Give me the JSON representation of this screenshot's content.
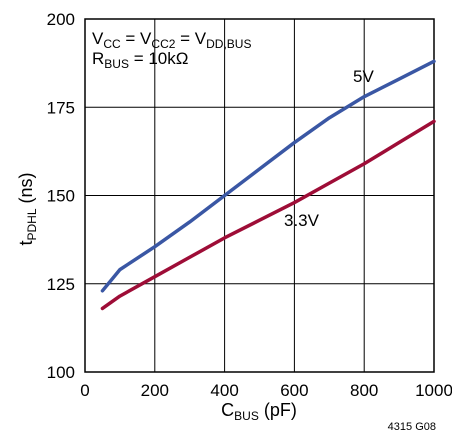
{
  "chart_data": {
    "type": "line",
    "title": "",
    "xlabel": {
      "main": "C",
      "sub": "BUS",
      "suffix": " (pF)"
    },
    "ylabel": {
      "main": "t",
      "sub": "PDHL",
      "suffix": " (ns)"
    },
    "xlim": [
      0,
      1000
    ],
    "ylim": [
      100,
      200
    ],
    "xticks": [
      "0",
      "200",
      "400",
      "600",
      "800",
      "1000"
    ],
    "yticks": [
      "100",
      "125",
      "150",
      "175",
      "200"
    ],
    "grid": true,
    "series": [
      {
        "name": "5V",
        "color": "#3a57a4",
        "x": [
          50,
          100,
          200,
          300,
          400,
          500,
          600,
          700,
          800,
          900,
          1000
        ],
        "y": [
          123,
          129,
          135.5,
          142.5,
          150,
          157.5,
          165,
          172,
          178,
          183,
          188
        ]
      },
      {
        "name": "3.3V",
        "color": "#9e0d37",
        "x": [
          50,
          100,
          200,
          300,
          400,
          500,
          600,
          700,
          800,
          900,
          1000
        ],
        "y": [
          118,
          121.5,
          127,
          132.5,
          138,
          143,
          148,
          153.5,
          159,
          165,
          171
        ]
      }
    ],
    "annotations": {
      "line1": {
        "t1": "V",
        "s1": "CC",
        "t2": " = V",
        "s2": "CC2",
        "t3": " = V",
        "s3": "DD,BUS"
      },
      "line2": {
        "t1": "R",
        "s1": "BUS",
        "t2": " = 10kΩ"
      }
    },
    "figure_id": "4315 G08"
  }
}
